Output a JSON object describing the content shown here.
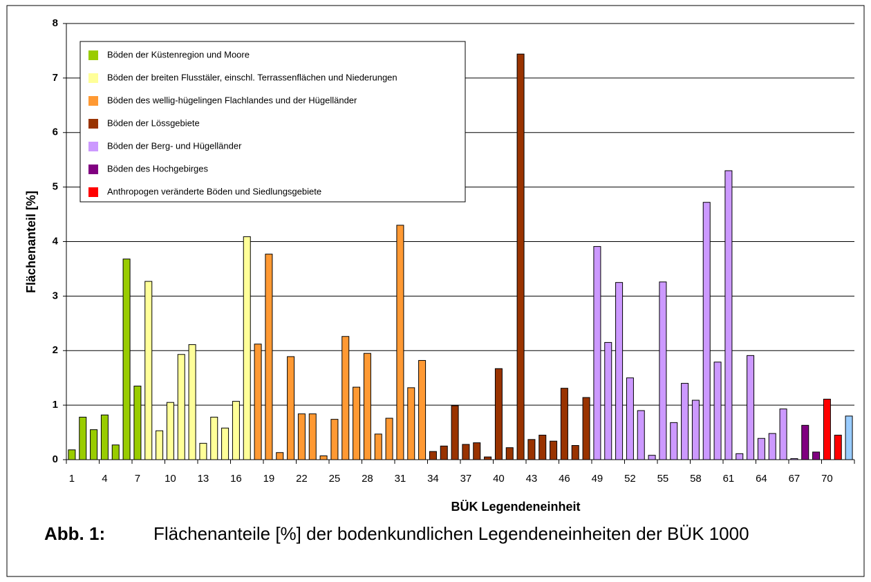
{
  "chart_data": {
    "type": "bar",
    "title": "Flächenanteile [%] der bodenkundlichen Legendeneinheiten der BÜK 1000",
    "figure_label": "Abb. 1:",
    "x_label": "BÜK Legendeneinheit",
    "y_label": "Flächenanteil [%]",
    "categories": [
      1,
      null,
      null,
      4,
      null,
      null,
      7,
      null,
      null,
      10,
      null,
      null,
      13,
      null,
      null,
      16,
      null,
      null,
      19,
      null,
      null,
      22,
      null,
      null,
      25,
      null,
      null,
      28,
      null,
      null,
      31,
      null,
      null,
      34,
      null,
      null,
      37,
      null,
      null,
      40,
      null,
      null,
      43,
      null,
      null,
      46,
      null,
      null,
      49,
      null,
      null,
      52,
      null,
      null,
      55,
      null,
      null,
      58,
      null,
      null,
      61,
      null,
      null,
      64,
      null,
      null,
      67,
      null,
      null,
      70,
      null,
      null
    ],
    "values": [
      0.18,
      0.78,
      0.55,
      0.82,
      0.27,
      3.68,
      1.35,
      3.27,
      0.53,
      1.05,
      1.93,
      2.11,
      0.3,
      0.78,
      0.58,
      1.07,
      4.09,
      2.12,
      3.77,
      0.13,
      1.89,
      0.84,
      0.84,
      0.07,
      0.74,
      2.26,
      1.33,
      1.95,
      0.47,
      0.76,
      4.3,
      1.32,
      1.82,
      0.15,
      0.25,
      0.99,
      0.28,
      0.31,
      0.05,
      1.67,
      0.22,
      7.44,
      0.37,
      0.45,
      0.34,
      1.31,
      0.26,
      1.14,
      3.91,
      2.15,
      3.25,
      1.5,
      0.9,
      0.08,
      3.26,
      0.68,
      1.4,
      1.09,
      4.72,
      1.79,
      5.3,
      0.11,
      1.91,
      0.39,
      0.48,
      0.93,
      0.02,
      0.63,
      0.14,
      1.11,
      0.45,
      0.8
    ],
    "colors": [
      "#99cc00",
      "#99cc00",
      "#99cc00",
      "#99cc00",
      "#99cc00",
      "#99cc00",
      "#99cc00",
      "#ffff99",
      "#ffff99",
      "#ffff99",
      "#ffff99",
      "#ffff99",
      "#ffff99",
      "#ffff99",
      "#ffff99",
      "#ffff99",
      "#ffff99",
      "#ff9933",
      "#ff9933",
      "#ff9933",
      "#ff9933",
      "#ff9933",
      "#ff9933",
      "#ff9933",
      "#ff9933",
      "#ff9933",
      "#ff9933",
      "#ff9933",
      "#ff9933",
      "#ff9933",
      "#ff9933",
      "#ff9933",
      "#ff9933",
      "#993300",
      "#993300",
      "#993300",
      "#993300",
      "#993300",
      "#993300",
      "#993300",
      "#993300",
      "#993300",
      "#993300",
      "#993300",
      "#993300",
      "#993300",
      "#993300",
      "#993300",
      "#cc99ff",
      "#cc99ff",
      "#cc99ff",
      "#cc99ff",
      "#cc99ff",
      "#cc99ff",
      "#cc99ff",
      "#cc99ff",
      "#cc99ff",
      "#cc99ff",
      "#cc99ff",
      "#cc99ff",
      "#cc99ff",
      "#cc99ff",
      "#cc99ff",
      "#cc99ff",
      "#cc99ff",
      "#cc99ff",
      "#cc99ff",
      "#800080",
      "#800080",
      "#ff0000",
      "#ff0000",
      "#99ccff"
    ],
    "legend": [
      {
        "name": "Böden der Küstenregion und Moore",
        "color": "#99cc00"
      },
      {
        "name": "Böden der breiten Flusstäler, einschl. Terrassenflächen und Niederungen",
        "color": "#ffff99"
      },
      {
        "name": "Böden des wellig-hügelingen Flachlandes und der Hügelländer",
        "color": "#ff9933"
      },
      {
        "name": "Böden der Lössgebiete",
        "color": "#993300"
      },
      {
        "name": "Böden der Berg- und Hügelländer",
        "color": "#cc99ff"
      },
      {
        "name": "Böden des Hochgebirges",
        "color": "#800080"
      },
      {
        "name": "Anthropogen veränderte Böden und Siedlungsgebiete",
        "color": "#ff0000"
      }
    ],
    "ylim": [
      0,
      8
    ],
    "yticks": [
      0,
      1,
      2,
      3,
      4,
      5,
      6,
      7,
      8
    ],
    "grid": true
  }
}
